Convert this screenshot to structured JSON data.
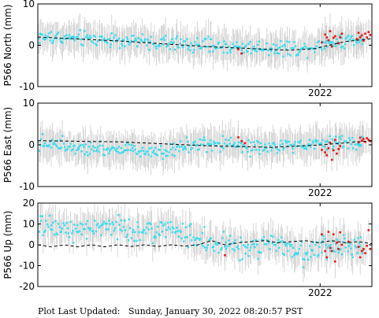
{
  "footer_text": "Plot Last Updated:   Sunday, January 30, 2022 08:20:57 PST",
  "colors": {
    "historic": "#33ddf0",
    "recent": "#ee1111",
    "errorbar": "#cccccc",
    "model": "#000000",
    "frame": "#000000"
  },
  "chart_data": [
    {
      "type": "scatter",
      "ylabel": "P566 North (mm)",
      "ylim": [
        -10,
        10
      ],
      "yticks": [
        -10,
        0,
        10
      ],
      "x_tick_label": "2022",
      "x_tick_pos": 0.845,
      "error_halfwidth": 3.5,
      "model_line": [
        [
          0.0,
          2.0
        ],
        [
          0.25,
          1.0
        ],
        [
          0.5,
          -0.3
        ],
        [
          0.75,
          -1.2
        ],
        [
          0.83,
          -0.8
        ],
        [
          0.92,
          0.9
        ],
        [
          1.0,
          1.6
        ]
      ],
      "historic_trend": [
        [
          0.0,
          2.0
        ],
        [
          0.2,
          1.4
        ],
        [
          0.4,
          0.4
        ],
        [
          0.6,
          -0.5
        ],
        [
          0.8,
          -0.8
        ],
        [
          0.85,
          0.3
        ],
        [
          1.0,
          2.0
        ]
      ],
      "historic_noise": 1.3,
      "recent_points": [
        [
          0.85,
          0.7
        ],
        [
          0.86,
          2.6
        ],
        [
          0.865,
          1.9
        ],
        [
          0.87,
          1.2
        ],
        [
          0.875,
          3.4
        ],
        [
          0.88,
          -0.3
        ],
        [
          0.885,
          1.8
        ],
        [
          0.89,
          2.2
        ],
        [
          0.9,
          0.5
        ],
        [
          0.905,
          1.9
        ],
        [
          0.91,
          2.8
        ],
        [
          0.955,
          1.5
        ],
        [
          0.96,
          3.0
        ],
        [
          0.965,
          1.9
        ],
        [
          0.97,
          2.4
        ],
        [
          0.975,
          1.1
        ],
        [
          0.98,
          2.8
        ],
        [
          0.985,
          1.9
        ],
        [
          0.99,
          3.2
        ],
        [
          0.995,
          2.5
        ],
        [
          0.6,
          -1.0
        ],
        [
          0.61,
          -2.0
        ]
      ]
    },
    {
      "type": "scatter",
      "ylabel": "P566 East (mm)",
      "ylim": [
        -10,
        10
      ],
      "yticks": [
        -10,
        0,
        10
      ],
      "x_tick_label": "2022",
      "x_tick_pos": 0.845,
      "error_halfwidth": 3.5,
      "model_line": [
        [
          0.0,
          1.0
        ],
        [
          0.25,
          0.7
        ],
        [
          0.5,
          -0.2
        ],
        [
          0.7,
          -0.6
        ],
        [
          0.85,
          0.0
        ],
        [
          1.0,
          1.0
        ]
      ],
      "historic_trend": [
        [
          0.0,
          0.5
        ],
        [
          0.2,
          -0.8
        ],
        [
          0.35,
          -1.5
        ],
        [
          0.5,
          0.0
        ],
        [
          0.7,
          -0.8
        ],
        [
          0.85,
          0.3
        ],
        [
          1.0,
          1.0
        ]
      ],
      "historic_noise": 1.3,
      "recent_points": [
        [
          0.6,
          1.8
        ],
        [
          0.61,
          0.9
        ],
        [
          0.62,
          0.4
        ],
        [
          0.85,
          -1.2
        ],
        [
          0.86,
          -1.8
        ],
        [
          0.865,
          -2.5
        ],
        [
          0.87,
          -0.8
        ],
        [
          0.875,
          0.5
        ],
        [
          0.88,
          -3.6
        ],
        [
          0.885,
          -1.3
        ],
        [
          0.89,
          1.2
        ],
        [
          0.895,
          -2.1
        ],
        [
          0.9,
          -1.0
        ],
        [
          0.905,
          -0.3
        ],
        [
          0.96,
          0.6
        ],
        [
          0.965,
          1.7
        ],
        [
          0.97,
          1.0
        ],
        [
          0.975,
          1.4
        ],
        [
          0.98,
          0.7
        ],
        [
          0.985,
          1.6
        ],
        [
          0.99,
          1.2
        ],
        [
          0.995,
          0.9
        ]
      ]
    },
    {
      "type": "scatter",
      "ylabel": "P566 Up (mm)",
      "ylim": [
        -20,
        20
      ],
      "yticks": [
        -20,
        -10,
        0,
        10,
        20
      ],
      "x_tick_label": "2022",
      "x_tick_pos": 0.845,
      "error_halfwidth": 7.0,
      "model_line": [
        [
          0.0,
          0.0
        ],
        [
          0.04,
          -1.0
        ],
        [
          0.08,
          0.0
        ],
        [
          0.12,
          -1.0
        ],
        [
          0.16,
          0.0
        ],
        [
          0.2,
          -1.0
        ],
        [
          0.24,
          0.0
        ],
        [
          0.28,
          -0.8
        ],
        [
          0.32,
          0.0
        ],
        [
          0.36,
          -0.8
        ],
        [
          0.4,
          0.0
        ],
        [
          0.44,
          -0.6
        ],
        [
          0.48,
          0.0
        ],
        [
          0.52,
          2.0
        ],
        [
          0.56,
          0.0
        ],
        [
          0.6,
          1.0
        ],
        [
          0.64,
          1.5
        ],
        [
          0.68,
          2.0
        ],
        [
          0.72,
          1.0
        ],
        [
          0.76,
          1.5
        ],
        [
          0.8,
          2.0
        ],
        [
          0.84,
          1.0
        ],
        [
          0.88,
          2.0
        ],
        [
          0.92,
          1.0
        ],
        [
          0.96,
          1.5
        ],
        [
          1.0,
          0.5
        ]
      ],
      "historic_trend": [
        [
          0.0,
          8.0
        ],
        [
          0.2,
          8.0
        ],
        [
          0.4,
          7.0
        ],
        [
          0.5,
          2.0
        ],
        [
          0.6,
          -2.0
        ],
        [
          0.7,
          0.0
        ],
        [
          0.8,
          -4.0
        ],
        [
          0.9,
          0.0
        ],
        [
          1.0,
          -5.0
        ]
      ],
      "historic_noise": 4.0,
      "recent_points": [
        [
          0.85,
          5.0
        ],
        [
          0.86,
          -3.0
        ],
        [
          0.865,
          -6.0
        ],
        [
          0.87,
          6.2
        ],
        [
          0.875,
          -1.5
        ],
        [
          0.88,
          -3.0
        ],
        [
          0.885,
          5.0
        ],
        [
          0.89,
          -8.0
        ],
        [
          0.895,
          1.0
        ],
        [
          0.9,
          -2.0
        ],
        [
          0.905,
          6.0
        ],
        [
          0.91,
          0.0
        ],
        [
          0.96,
          -1.0
        ],
        [
          0.965,
          -6.0
        ],
        [
          0.97,
          -3.0
        ],
        [
          0.975,
          -2.0
        ],
        [
          0.98,
          -4.0
        ],
        [
          0.985,
          -0.5
        ],
        [
          0.99,
          7.0
        ],
        [
          0.995,
          -2.0
        ],
        [
          0.56,
          -5.0
        ],
        [
          0.93,
          1.5
        ]
      ]
    }
  ]
}
